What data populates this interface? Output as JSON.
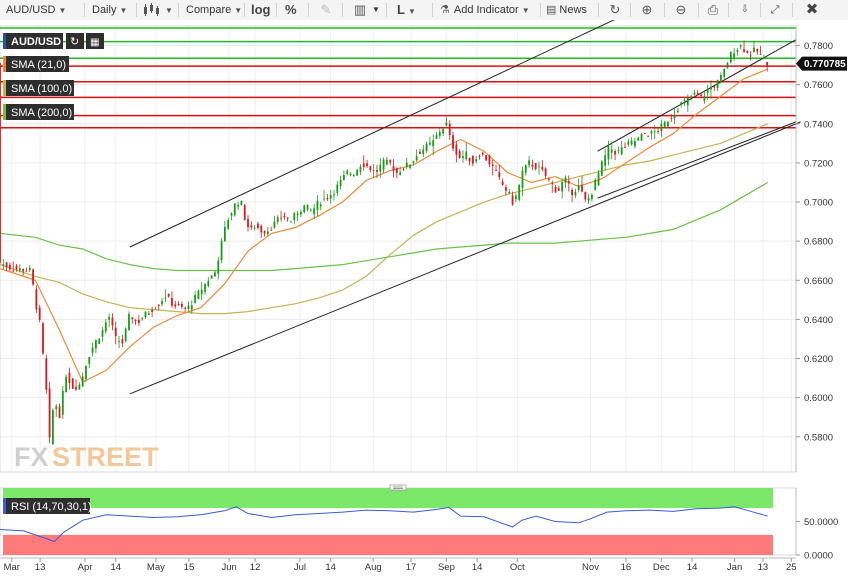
{
  "toolbar": {
    "symbol": "AUD/USD",
    "interval": "Daily",
    "compare": "Compare",
    "log": "log",
    "percent": "%",
    "line_mode": "L",
    "add_indicator": "Add Indicator",
    "news": "News",
    "tools": {
      "candle_icon": "candlestick-icon",
      "bars_icon": "bars-icon",
      "indicator_icon": "indicator-icon",
      "news_icon": "newspaper-icon",
      "refresh_icon": "refresh-icon",
      "zoom_in_icon": "zoom-in-icon",
      "zoom_out_icon": "zoom-out-icon",
      "print_icon": "print-icon",
      "png_icon": "png-download-icon",
      "fullscreen_icon": "fullscreen-icon",
      "close_icon": "close-icon"
    }
  },
  "legend": {
    "symbol": "AUD/USD",
    "sma21": "SMA (21,0)",
    "sma100": "SMA (100,0)",
    "sma200": "SMA (200,0)",
    "rsi": "RSI (14,70,30,1)"
  },
  "watermark": {
    "part1": "FX",
    "part2": "STREET"
  },
  "chart_data": {
    "type": "candlestick",
    "symbol": "AUD/USD",
    "timeframe": "Daily",
    "last_price": 0.770785,
    "last_price_label": "0.770785",
    "ylim": [
      0.562,
      0.79
    ],
    "y_ticks": [
      "0.7800",
      "0.7600",
      "0.7400",
      "0.7200",
      "0.7000",
      "0.6800",
      "0.6600",
      "0.6400",
      "0.6200",
      "0.6000",
      "0.5800"
    ],
    "x_ticks": [
      {
        "label": "Mar",
        "d": 0
      },
      {
        "label": "13",
        "d": 12
      },
      {
        "label": "Apr",
        "d": 31
      },
      {
        "label": "14",
        "d": 44
      },
      {
        "label": "May",
        "d": 61
      },
      {
        "label": "15",
        "d": 75
      },
      {
        "label": "Jun",
        "d": 92
      },
      {
        "label": "12",
        "d": 103
      },
      {
        "label": "Jul",
        "d": 122
      },
      {
        "label": "14",
        "d": 135
      },
      {
        "label": "Aug",
        "d": 153
      },
      {
        "label": "17",
        "d": 169
      },
      {
        "label": "Sep",
        "d": 184
      },
      {
        "label": "14",
        "d": 197
      },
      {
        "label": "Oct",
        "d": 214
      },
      {
        "label": "Nov",
        "d": 245
      },
      {
        "label": "16",
        "d": 260
      },
      {
        "label": "Dec",
        "d": 275
      },
      {
        "label": "14",
        "d": 288
      },
      {
        "label": "Jan",
        "d": 306
      },
      {
        "label": "13",
        "d": 318
      },
      {
        "label": "25",
        "d": 330
      }
    ],
    "x_range_days": [
      -5,
      332
    ],
    "price_anchors": [
      [
        -5,
        0.669
      ],
      [
        0,
        0.666
      ],
      [
        8,
        0.665
      ],
      [
        10,
        0.649
      ],
      [
        12,
        0.637
      ],
      [
        15,
        0.598
      ],
      [
        16,
        0.578
      ],
      [
        18,
        0.6
      ],
      [
        20,
        0.59
      ],
      [
        23,
        0.612
      ],
      [
        26,
        0.605
      ],
      [
        29,
        0.607
      ],
      [
        32,
        0.62
      ],
      [
        35,
        0.628
      ],
      [
        38,
        0.633
      ],
      [
        41,
        0.642
      ],
      [
        44,
        0.63
      ],
      [
        47,
        0.628
      ],
      [
        50,
        0.643
      ],
      [
        53,
        0.638
      ],
      [
        56,
        0.642
      ],
      [
        59,
        0.645
      ],
      [
        62,
        0.648
      ],
      [
        65,
        0.652
      ],
      [
        68,
        0.648
      ],
      [
        71,
        0.646
      ],
      [
        74,
        0.645
      ],
      [
        77,
        0.65
      ],
      [
        80,
        0.655
      ],
      [
        83,
        0.66
      ],
      [
        86,
        0.664
      ],
      [
        89,
        0.68
      ],
      [
        91,
        0.69
      ],
      [
        93,
        0.695
      ],
      [
        95,
        0.7
      ],
      [
        97,
        0.7
      ],
      [
        99,
        0.69
      ],
      [
        101,
        0.685
      ],
      [
        103,
        0.688
      ],
      [
        106,
        0.685
      ],
      [
        109,
        0.686
      ],
      [
        112,
        0.69
      ],
      [
        115,
        0.693
      ],
      [
        118,
        0.69
      ],
      [
        121,
        0.695
      ],
      [
        124,
        0.698
      ],
      [
        127,
        0.695
      ],
      [
        130,
        0.7
      ],
      [
        133,
        0.702
      ],
      [
        136,
        0.705
      ],
      [
        139,
        0.71
      ],
      [
        142,
        0.715
      ],
      [
        145,
        0.715
      ],
      [
        148,
        0.72
      ],
      [
        151,
        0.718
      ],
      [
        154,
        0.715
      ],
      [
        157,
        0.72
      ],
      [
        160,
        0.72
      ],
      [
        163,
        0.715
      ],
      [
        166,
        0.718
      ],
      [
        169,
        0.72
      ],
      [
        172,
        0.725
      ],
      [
        175,
        0.728
      ],
      [
        178,
        0.73
      ],
      [
        181,
        0.736
      ],
      [
        184,
        0.74
      ],
      [
        186,
        0.73
      ],
      [
        188,
        0.726
      ],
      [
        190,
        0.722
      ],
      [
        192,
        0.725
      ],
      [
        195,
        0.72
      ],
      [
        198,
        0.725
      ],
      [
        201,
        0.722
      ],
      [
        204,
        0.717
      ],
      [
        207,
        0.71
      ],
      [
        210,
        0.705
      ],
      [
        212,
        0.7
      ],
      [
        214,
        0.704
      ],
      [
        216,
        0.715
      ],
      [
        219,
        0.72
      ],
      [
        222,
        0.718
      ],
      [
        225,
        0.715
      ],
      [
        228,
        0.71
      ],
      [
        231,
        0.705
      ],
      [
        234,
        0.712
      ],
      [
        237,
        0.705
      ],
      [
        240,
        0.708
      ],
      [
        243,
        0.7
      ],
      [
        245,
        0.703
      ],
      [
        247,
        0.71
      ],
      [
        250,
        0.72
      ],
      [
        253,
        0.728
      ],
      [
        256,
        0.725
      ],
      [
        259,
        0.728
      ],
      [
        262,
        0.73
      ],
      [
        265,
        0.732
      ],
      [
        268,
        0.735
      ],
      [
        271,
        0.735
      ],
      [
        274,
        0.737
      ],
      [
        277,
        0.741
      ],
      [
        280,
        0.745
      ],
      [
        283,
        0.75
      ],
      [
        286,
        0.752
      ],
      [
        289,
        0.755
      ],
      [
        292,
        0.753
      ],
      [
        295,
        0.758
      ],
      [
        298,
        0.76
      ],
      [
        301,
        0.765
      ],
      [
        304,
        0.775
      ],
      [
        306,
        0.778
      ],
      [
        309,
        0.78
      ],
      [
        312,
        0.775
      ],
      [
        315,
        0.778
      ],
      [
        318,
        0.773
      ],
      [
        320,
        0.7708
      ]
    ],
    "overlays": {
      "sma21": [
        [
          -5,
          0.666
        ],
        [
          10,
          0.66
        ],
        [
          20,
          0.635
        ],
        [
          30,
          0.608
        ],
        [
          40,
          0.614
        ],
        [
          50,
          0.626
        ],
        [
          60,
          0.636
        ],
        [
          70,
          0.642
        ],
        [
          80,
          0.646
        ],
        [
          90,
          0.658
        ],
        [
          100,
          0.675
        ],
        [
          110,
          0.684
        ],
        [
          120,
          0.687
        ],
        [
          130,
          0.693
        ],
        [
          140,
          0.7
        ],
        [
          150,
          0.711
        ],
        [
          160,
          0.716
        ],
        [
          170,
          0.719
        ],
        [
          180,
          0.726
        ],
        [
          190,
          0.732
        ],
        [
          200,
          0.726
        ],
        [
          210,
          0.715
        ],
        [
          220,
          0.71
        ],
        [
          230,
          0.713
        ],
        [
          240,
          0.708
        ],
        [
          250,
          0.712
        ],
        [
          260,
          0.72
        ],
        [
          270,
          0.728
        ],
        [
          280,
          0.735
        ],
        [
          290,
          0.745
        ],
        [
          300,
          0.754
        ],
        [
          310,
          0.763
        ],
        [
          320,
          0.768
        ]
      ],
      "sma100": [
        [
          -5,
          0.668
        ],
        [
          10,
          0.662
        ],
        [
          20,
          0.659
        ],
        [
          30,
          0.653
        ],
        [
          40,
          0.649
        ],
        [
          50,
          0.646
        ],
        [
          60,
          0.645
        ],
        [
          70,
          0.644
        ],
        [
          80,
          0.643
        ],
        [
          90,
          0.643
        ],
        [
          100,
          0.644
        ],
        [
          110,
          0.646
        ],
        [
          120,
          0.648
        ],
        [
          130,
          0.651
        ],
        [
          140,
          0.655
        ],
        [
          150,
          0.662
        ],
        [
          160,
          0.673
        ],
        [
          170,
          0.683
        ],
        [
          180,
          0.69
        ],
        [
          190,
          0.695
        ],
        [
          200,
          0.7
        ],
        [
          210,
          0.704
        ],
        [
          220,
          0.707
        ],
        [
          230,
          0.71
        ],
        [
          240,
          0.713
        ],
        [
          250,
          0.716
        ],
        [
          260,
          0.719
        ],
        [
          270,
          0.721
        ],
        [
          280,
          0.724
        ],
        [
          290,
          0.727
        ],
        [
          300,
          0.73
        ],
        [
          310,
          0.735
        ],
        [
          320,
          0.74
        ]
      ],
      "sma200": [
        [
          -5,
          0.684
        ],
        [
          10,
          0.682
        ],
        [
          20,
          0.678
        ],
        [
          30,
          0.676
        ],
        [
          40,
          0.671
        ],
        [
          50,
          0.668
        ],
        [
          60,
          0.666
        ],
        [
          70,
          0.665
        ],
        [
          80,
          0.665
        ],
        [
          90,
          0.665
        ],
        [
          100,
          0.665
        ],
        [
          110,
          0.665
        ],
        [
          120,
          0.666
        ],
        [
          130,
          0.667
        ],
        [
          140,
          0.668
        ],
        [
          150,
          0.67
        ],
        [
          160,
          0.672
        ],
        [
          170,
          0.674
        ],
        [
          180,
          0.676
        ],
        [
          190,
          0.677
        ],
        [
          200,
          0.678
        ],
        [
          210,
          0.679
        ],
        [
          220,
          0.679
        ],
        [
          230,
          0.679
        ],
        [
          240,
          0.68
        ],
        [
          250,
          0.681
        ],
        [
          260,
          0.682
        ],
        [
          270,
          0.684
        ],
        [
          280,
          0.686
        ],
        [
          290,
          0.691
        ],
        [
          300,
          0.696
        ],
        [
          310,
          0.703
        ],
        [
          320,
          0.71
        ]
      ],
      "channel_upper": [
        [
          50,
          0.677
        ],
        [
          336,
          0.839
        ]
      ],
      "channel_lower": [
        [
          50,
          0.602
        ],
        [
          334,
          0.741
        ]
      ],
      "short_channel_upper": [
        [
          248,
          0.726
        ],
        [
          332,
          0.783
        ]
      ],
      "short_channel_lower": [
        [
          248,
          0.702
        ],
        [
          332,
          0.741
        ]
      ]
    },
    "horizontal_levels": [
      {
        "price": 0.789,
        "color": "#22bb22"
      },
      {
        "price": 0.782,
        "color": "#22bb22"
      },
      {
        "price": 0.7735,
        "color": "#22bb22"
      },
      {
        "price": 0.7695,
        "color": "#dd1111"
      },
      {
        "price": 0.7615,
        "color": "#dd1111"
      },
      {
        "price": 0.7535,
        "color": "#dd1111"
      },
      {
        "price": 0.7442,
        "color": "#dd1111"
      },
      {
        "price": 0.738,
        "color": "#dd1111"
      }
    ],
    "rsi": {
      "name": "RSI (14,70,30,1)",
      "ylim": [
        0,
        100
      ],
      "tick_labels": [
        "50.0000",
        "0.0000"
      ],
      "tick_values": [
        50,
        0
      ],
      "overbought": 70,
      "oversold": 30,
      "values": [
        [
          -5,
          38
        ],
        [
          5,
          36
        ],
        [
          10,
          30
        ],
        [
          15,
          24
        ],
        [
          18,
          20
        ],
        [
          22,
          34
        ],
        [
          30,
          52
        ],
        [
          40,
          60
        ],
        [
          50,
          58
        ],
        [
          60,
          56
        ],
        [
          70,
          57
        ],
        [
          80,
          60
        ],
        [
          90,
          66
        ],
        [
          95,
          72
        ],
        [
          100,
          62
        ],
        [
          110,
          56
        ],
        [
          120,
          60
        ],
        [
          130,
          62
        ],
        [
          140,
          64
        ],
        [
          150,
          67
        ],
        [
          160,
          66
        ],
        [
          170,
          64
        ],
        [
          180,
          68
        ],
        [
          185,
          71
        ],
        [
          190,
          58
        ],
        [
          200,
          57
        ],
        [
          207,
          48
        ],
        [
          212,
          42
        ],
        [
          216,
          52
        ],
        [
          222,
          58
        ],
        [
          230,
          50
        ],
        [
          240,
          48
        ],
        [
          245,
          54
        ],
        [
          252,
          64
        ],
        [
          260,
          66
        ],
        [
          270,
          67
        ],
        [
          280,
          65
        ],
        [
          290,
          69
        ],
        [
          300,
          70
        ],
        [
          306,
          72
        ],
        [
          312,
          66
        ],
        [
          318,
          60
        ],
        [
          320,
          58
        ]
      ]
    },
    "colors": {
      "up": "#1a9a1a",
      "down": "#d9191c",
      "sma21": "#f0883a",
      "sma100": "#c2b554",
      "sma200": "#6cc14a",
      "rsi": "#3b5bdb"
    }
  }
}
